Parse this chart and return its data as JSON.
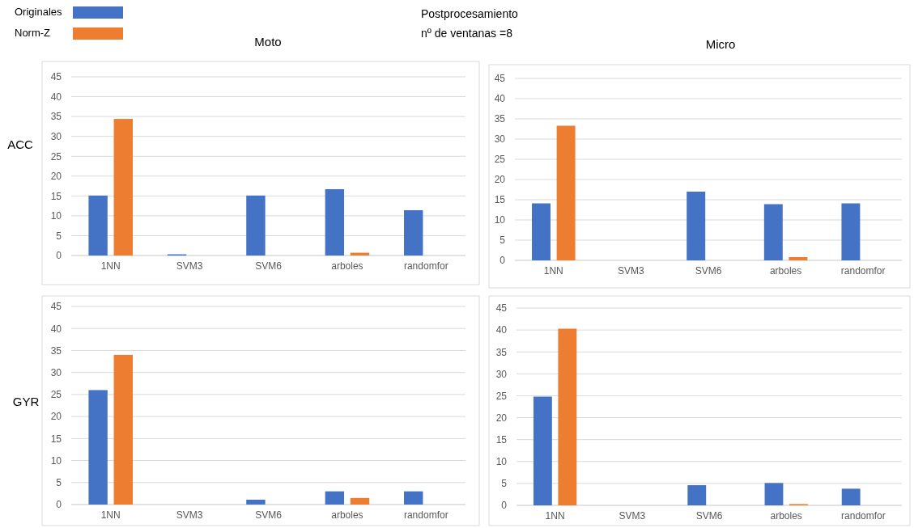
{
  "chart_data": [
    {
      "type": "bar",
      "title": "Moto",
      "ylabel": "ACC",
      "annotations": [
        "Postprocesamiento",
        "nº de ventanas =8"
      ],
      "categories": [
        "1NN",
        "SVM3",
        "SVM6",
        "arboles",
        "randomfor"
      ],
      "series": [
        {
          "name": "Originales",
          "color": "#4472c4",
          "values": [
            15.1,
            0.3,
            15.1,
            16.7,
            11.4
          ]
        },
        {
          "name": "Norm-Z",
          "color": "#ed7d31",
          "values": [
            34.4,
            0,
            0,
            0.7,
            0
          ]
        }
      ],
      "ylim": [
        0,
        45
      ],
      "yticks": [
        0,
        5,
        10,
        15,
        20,
        25,
        30,
        35,
        40,
        45
      ],
      "grid": "y",
      "legend": "top left"
    },
    {
      "type": "bar",
      "title": "Micro",
      "categories": [
        "1NN",
        "SVM3",
        "SVM6",
        "arboles",
        "randomfor"
      ],
      "series": [
        {
          "color": "#4472c4",
          "values": [
            14.1,
            0,
            17,
            13.9,
            14.1
          ]
        },
        {
          "color": "#ed7d31",
          "values": [
            33.3,
            0,
            0,
            0.8,
            0
          ]
        }
      ],
      "ylim": [
        0,
        45
      ],
      "yticks": [
        0,
        5,
        10,
        15,
        20,
        25,
        30,
        35,
        40,
        45
      ],
      "grid": "y"
    },
    {
      "type": "bar",
      "ylabel": "GYR",
      "categories": [
        "1NN",
        "SVM3",
        "SVM6",
        "arboles",
        "randomfor"
      ],
      "series": [
        {
          "color": "#4472c4",
          "values": [
            26,
            0,
            1.1,
            3,
            3
          ]
        },
        {
          "color": "#ed7d31",
          "values": [
            34,
            0,
            0,
            1.5,
            0
          ]
        }
      ],
      "ylim": [
        0,
        45
      ],
      "yticks": [
        0,
        5,
        10,
        15,
        20,
        25,
        30,
        35,
        40,
        45
      ],
      "grid": "y"
    },
    {
      "type": "bar",
      "categories": [
        "1NN",
        "SVM3",
        "SVM6",
        "arboles",
        "randomfor"
      ],
      "series": [
        {
          "color": "#4472c4",
          "values": [
            24.8,
            0,
            4.6,
            5.1,
            3.8
          ]
        },
        {
          "color": "#ed7d31",
          "values": [
            40.3,
            0,
            0,
            0.3,
            0
          ]
        }
      ],
      "ylim": [
        0,
        45
      ],
      "yticks": [
        0,
        5,
        10,
        15,
        20,
        25,
        30,
        35,
        40,
        45
      ],
      "grid": "y"
    }
  ]
}
